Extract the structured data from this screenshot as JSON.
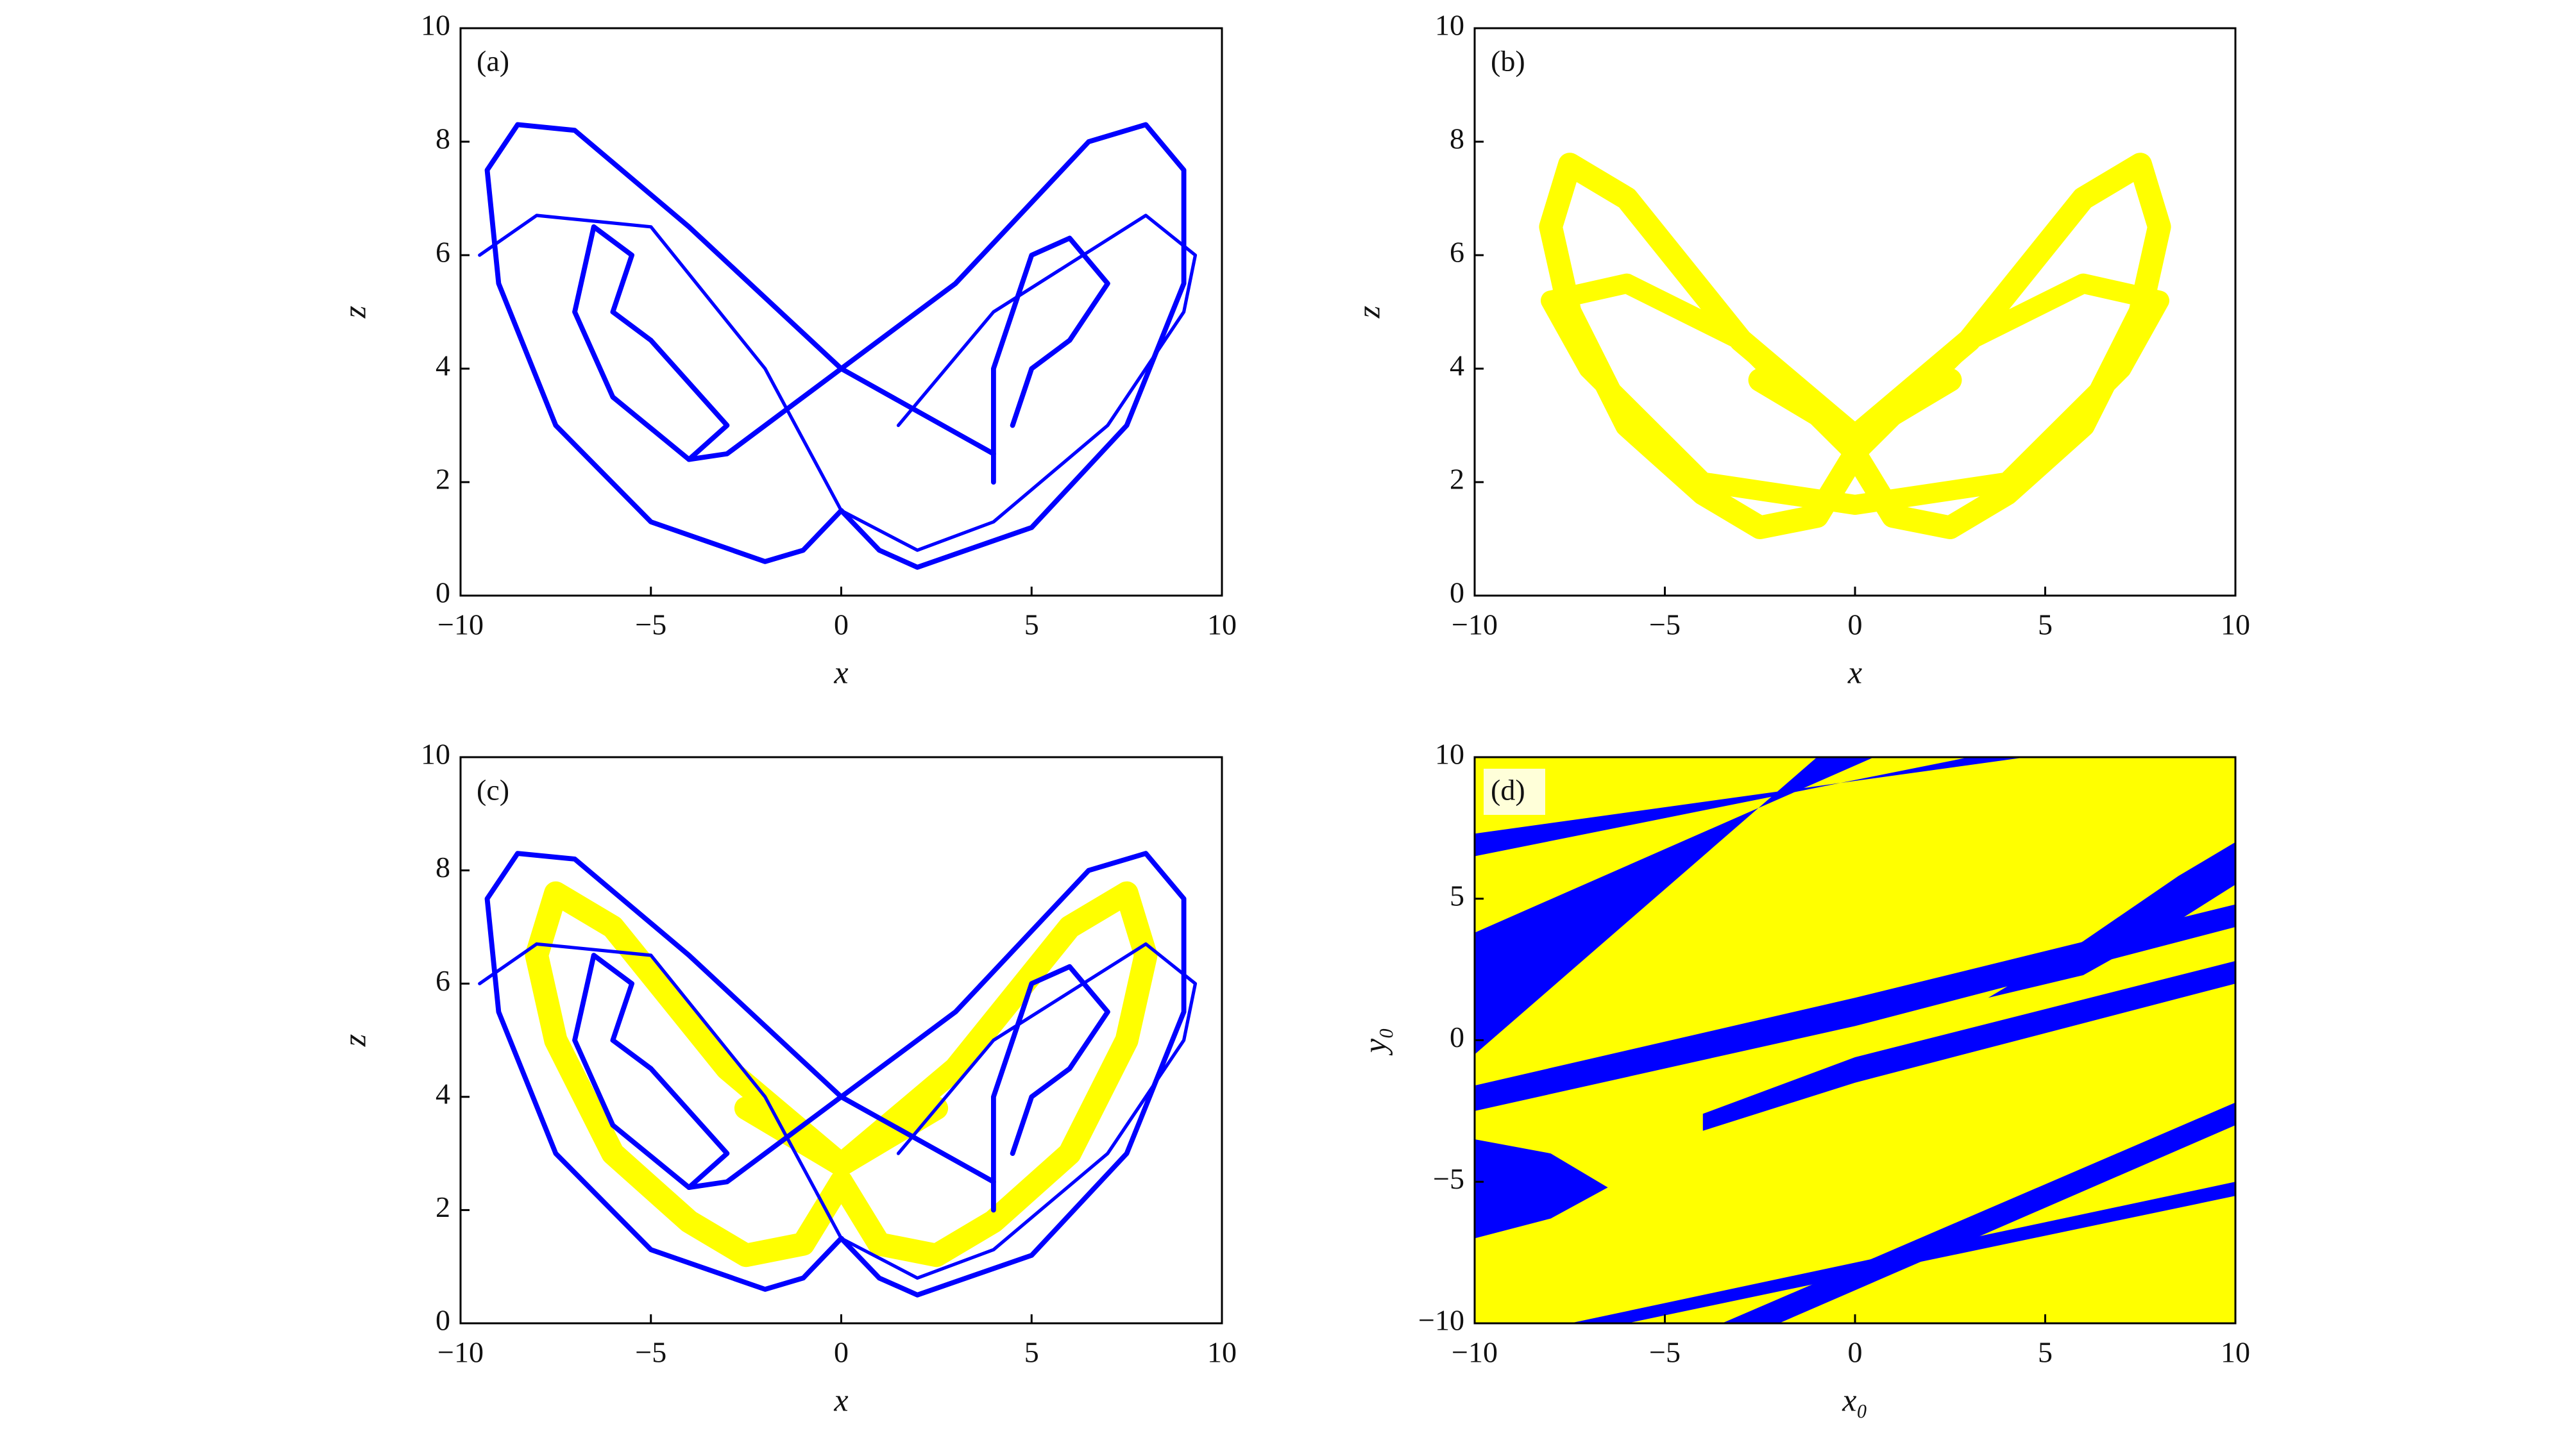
{
  "chart_data": [
    {
      "type": "line",
      "panel_label": "(a)",
      "x_label": "x",
      "y_label": "z",
      "xlim": [
        -10,
        10
      ],
      "ylim": [
        0,
        10
      ],
      "xticks": [
        {
          "value": -10,
          "label": "−10"
        },
        {
          "value": -5,
          "label": "−5"
        },
        0,
        5,
        10
      ],
      "yticks": [
        0,
        2,
        4,
        6,
        8,
        10
      ],
      "series": [
        {
          "color": "#0000ff",
          "linewidth": 3,
          "x": [
            4,
            0,
            -4,
            -7,
            -8.5,
            -9.3,
            -9,
            -7.5,
            -5,
            -2,
            -1,
            0
          ],
          "values": [
            2.5,
            4,
            6.5,
            8.2,
            8.3,
            7.5,
            5.5,
            3,
            1.3,
            0.6,
            0.8,
            1.5
          ]
        },
        {
          "color": "#0000ff",
          "linewidth": 3,
          "x": [
            0,
            1,
            2,
            5,
            7.5,
            9,
            9,
            8,
            6.5,
            3,
            0,
            -3,
            -4
          ],
          "values": [
            1.5,
            0.8,
            0.5,
            1.2,
            3,
            5.5,
            7.5,
            8.3,
            8,
            5.5,
            4,
            2.5,
            2.4
          ]
        },
        {
          "color": "#0000ff",
          "linewidth": 3,
          "x": [
            -4,
            -6,
            -7,
            -6.5,
            -5.5,
            -6,
            -5,
            -3,
            -4
          ],
          "values": [
            2.4,
            3.5,
            5,
            6.5,
            6,
            5,
            4.5,
            3,
            2.4
          ]
        },
        {
          "color": "#0000ff",
          "linewidth": 3,
          "x": [
            4,
            4,
            5,
            6,
            7,
            6,
            5,
            4.5
          ],
          "values": [
            2,
            4,
            6,
            6.3,
            5.5,
            4.5,
            4,
            3
          ]
        },
        {
          "color": "#0000ff",
          "linewidth": 2,
          "x": [
            -9.5,
            -8,
            -5,
            -2,
            0,
            2,
            4,
            7,
            9,
            9.3,
            8,
            4,
            1.5
          ],
          "values": [
            6,
            6.7,
            6.5,
            4,
            1.5,
            0.8,
            1.3,
            3,
            5,
            6,
            6.7,
            5,
            3
          ]
        }
      ]
    },
    {
      "type": "line",
      "panel_label": "(b)",
      "x_label": "x",
      "y_label": "z",
      "xlim": [
        -10,
        10
      ],
      "ylim": [
        0,
        10
      ],
      "xticks": [
        {
          "value": -10,
          "label": "−10"
        },
        {
          "value": -5,
          "label": "−5"
        },
        0,
        5,
        10
      ],
      "yticks": [
        0,
        2,
        4,
        6,
        8,
        10
      ],
      "series": [
        {
          "color": "#ffff00",
          "linewidth": 14,
          "x": [
            2.5,
            0,
            -3,
            -6,
            -7.5,
            -8,
            -7.5,
            -6,
            -4,
            -2.5,
            -1,
            0
          ],
          "values": [
            3.8,
            2.8,
            4.5,
            7,
            7.6,
            6.5,
            5,
            3,
            1.8,
            1.2,
            1.4,
            2.5
          ]
        },
        {
          "color": "#ffff00",
          "linewidth": 14,
          "x": [
            0,
            1,
            2.5,
            4,
            6,
            7.5,
            8,
            7.5,
            6,
            3,
            0,
            -2.5
          ],
          "values": [
            2.5,
            1.4,
            1.2,
            1.8,
            3,
            5,
            6.5,
            7.6,
            7,
            4.5,
            2.8,
            3.8
          ]
        },
        {
          "color": "#ffff00",
          "linewidth": 12,
          "x": [
            -8,
            -6,
            -3,
            0,
            3,
            6,
            8,
            7,
            4,
            0,
            -4,
            -7,
            -8
          ],
          "values": [
            5.2,
            5.5,
            4.5,
            2.5,
            4.5,
            5.5,
            5.2,
            4,
            2,
            1.6,
            2,
            4,
            5.2
          ]
        }
      ]
    },
    {
      "type": "line",
      "panel_label": "(c)",
      "x_label": "x",
      "y_label": "z",
      "xlim": [
        -10,
        10
      ],
      "ylim": [
        0,
        10
      ],
      "xticks": [
        {
          "value": -10,
          "label": "−10"
        },
        {
          "value": -5,
          "label": "−5"
        },
        0,
        5,
        10
      ],
      "yticks": [
        0,
        2,
        4,
        6,
        8,
        10
      ],
      "series": [
        {
          "color": "#ffff00",
          "linewidth": 14,
          "x": [
            2.5,
            0,
            -3,
            -6,
            -7.5,
            -8,
            -7.5,
            -6,
            -4,
            -2.5,
            -1,
            0
          ],
          "values": [
            3.8,
            2.8,
            4.5,
            7,
            7.6,
            6.5,
            5,
            3,
            1.8,
            1.2,
            1.4,
            2.5
          ]
        },
        {
          "color": "#ffff00",
          "linewidth": 14,
          "x": [
            0,
            1,
            2.5,
            4,
            6,
            7.5,
            8,
            7.5,
            6,
            3,
            0,
            -2.5
          ],
          "values": [
            2.5,
            1.4,
            1.2,
            1.8,
            3,
            5,
            6.5,
            7.6,
            7,
            4.5,
            2.8,
            3.8
          ]
        },
        {
          "color": "#0000ff",
          "linewidth": 3,
          "x": [
            4,
            0,
            -4,
            -7,
            -8.5,
            -9.3,
            -9,
            -7.5,
            -5,
            -2,
            -1,
            0
          ],
          "values": [
            2.5,
            4,
            6.5,
            8.2,
            8.3,
            7.5,
            5.5,
            3,
            1.3,
            0.6,
            0.8,
            1.5
          ]
        },
        {
          "color": "#0000ff",
          "linewidth": 3,
          "x": [
            0,
            1,
            2,
            5,
            7.5,
            9,
            9,
            8,
            6.5,
            3,
            0,
            -3,
            -4
          ],
          "values": [
            1.5,
            0.8,
            0.5,
            1.2,
            3,
            5.5,
            7.5,
            8.3,
            8,
            5.5,
            4,
            2.5,
            2.4
          ]
        },
        {
          "color": "#0000ff",
          "linewidth": 3,
          "x": [
            -4,
            -6,
            -7,
            -6.5,
            -5.5,
            -6,
            -5,
            -3,
            -4
          ],
          "values": [
            2.4,
            3.5,
            5,
            6.5,
            6,
            5,
            4.5,
            3,
            2.4
          ]
        },
        {
          "color": "#0000ff",
          "linewidth": 3,
          "x": [
            4,
            4,
            5,
            6,
            7,
            6,
            5,
            4.5
          ],
          "values": [
            2,
            4,
            6,
            6.3,
            5.5,
            4.5,
            4,
            3
          ]
        },
        {
          "color": "#0000ff",
          "linewidth": 2,
          "x": [
            -9.5,
            -8,
            -5,
            -2,
            0,
            2,
            4,
            7,
            9,
            9.3,
            8,
            4,
            1.5
          ],
          "values": [
            6,
            6.7,
            6.5,
            4,
            1.5,
            0.8,
            1.3,
            3,
            5,
            6,
            6.7,
            5,
            3
          ]
        }
      ]
    },
    {
      "type": "basin",
      "panel_label": "(d)",
      "x_label": "x₀",
      "y_label": "y₀",
      "background": "#ffff00",
      "xlim": [
        -10,
        10
      ],
      "ylim": [
        -10,
        10
      ],
      "xticks": [
        {
          "value": -10,
          "label": "−10"
        },
        {
          "value": -5,
          "label": "−5"
        },
        0,
        5,
        10
      ],
      "yticks": [
        {
          "value": -10,
          "label": "−10"
        },
        {
          "value": -5,
          "label": "−5"
        },
        0,
        5,
        10
      ],
      "series": [
        {
          "color": "#0000ff",
          "x": [
            -10,
            0.5,
            -1,
            -10
          ],
          "values": [
            3.8,
            10,
            10,
            -0.5
          ]
        },
        {
          "color": "#0000ff",
          "x": [
            -10,
            3,
            4.5,
            -10
          ],
          "values": [
            6.5,
            10,
            10,
            7.3
          ]
        },
        {
          "color": "#0000ff",
          "x": [
            -10,
            0,
            10,
            10,
            0,
            -10
          ],
          "values": [
            -2.5,
            0.5,
            4,
            4.8,
            1.5,
            -1.6
          ]
        },
        {
          "color": "#0000ff",
          "x": [
            -4,
            0,
            10,
            10,
            0,
            -4
          ],
          "values": [
            -3.2,
            -1.5,
            2,
            2.8,
            -0.6,
            -2.6
          ]
        },
        {
          "color": "#0000ff",
          "x": [
            -2,
            10,
            10,
            -3.5
          ],
          "values": [
            -10,
            -3,
            -2.2,
            -10
          ]
        },
        {
          "color": "#0000ff",
          "x": [
            -6,
            10,
            10,
            -7.5
          ],
          "values": [
            -10,
            -5.5,
            -5,
            -10
          ]
        },
        {
          "color": "#0000ff",
          "x": [
            3.5,
            6,
            8.5,
            10,
            10,
            8,
            6
          ],
          "values": [
            1.5,
            3.5,
            5.8,
            7,
            5.5,
            3.8,
            2.3
          ]
        },
        {
          "color": "#0000ff",
          "x": [
            -10,
            -8,
            -6.5,
            -8,
            -10
          ],
          "values": [
            -3.5,
            -4,
            -5.2,
            -6.3,
            -7
          ]
        }
      ]
    }
  ]
}
